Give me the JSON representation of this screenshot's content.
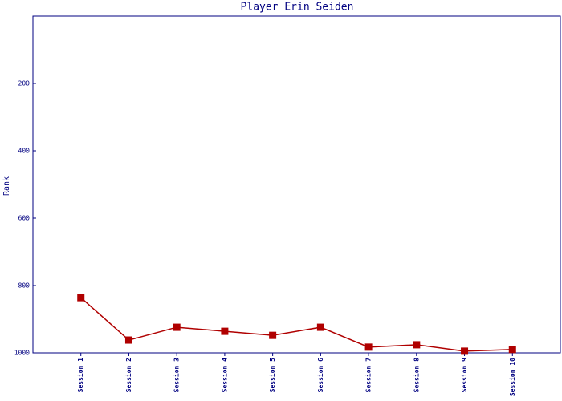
{
  "chart_data": {
    "type": "line",
    "title": "Player Erin Seiden",
    "y_label": "Rank",
    "categories": [
      "Session 1",
      "Session 2",
      "Session 3",
      "Session 4",
      "Session 5",
      "Session 6",
      "Session 7",
      "Session 8",
      "Session 9",
      "Session 10"
    ],
    "series": [
      {
        "name": "Rank",
        "color": "#b00000",
        "values": [
          836,
          962,
          924,
          936,
          948,
          924,
          983,
          976,
          995,
          990
        ]
      }
    ],
    "ylim": [
      1000,
      0
    ],
    "yticks": [
      200,
      400,
      600,
      800,
      1000
    ],
    "grid": false
  }
}
